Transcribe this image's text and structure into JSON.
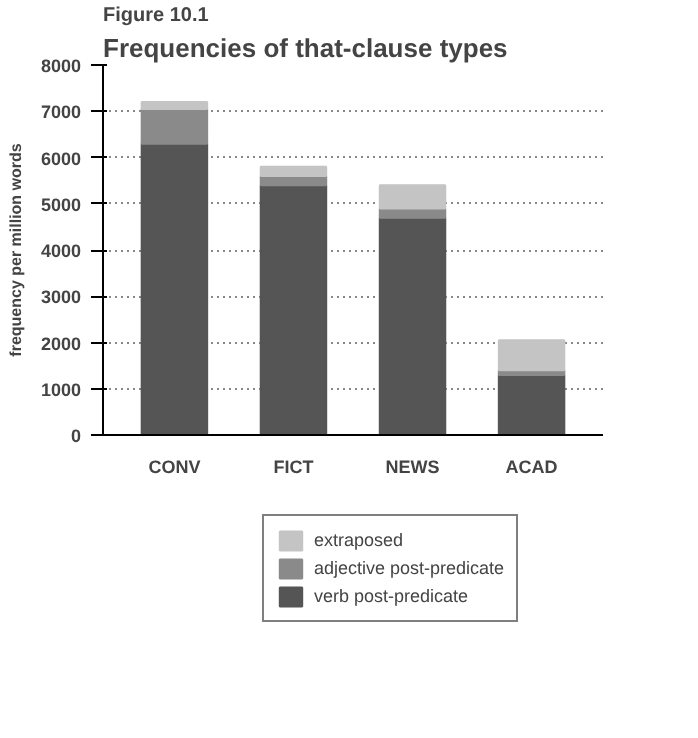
{
  "chart_data": {
    "type": "bar",
    "title": "Figure 10.1",
    "subtitle": "Frequencies of that-clause types",
    "ylabel": "frequency per million words",
    "categories": [
      "CONV",
      "FICT",
      "NEWS",
      "ACAD"
    ],
    "stacked": true,
    "series": [
      {
        "name": "verb post-predicate",
        "color": "#555555",
        "values": [
          6300,
          5400,
          4700,
          1300
        ]
      },
      {
        "name": "adjective post-predicate",
        "color": "#8a8a8a",
        "values": [
          750,
          200,
          200,
          100
        ]
      },
      {
        "name": "extraposed",
        "color": "#c4c4c4",
        "values": [
          150,
          200,
          500,
          650
        ]
      }
    ],
    "ylim": [
      0,
      8000
    ],
    "yticks": [
      0,
      1000,
      2000,
      3000,
      4000,
      5000,
      6000,
      7000,
      8000
    ],
    "grid": "y",
    "legend": "bottom"
  }
}
